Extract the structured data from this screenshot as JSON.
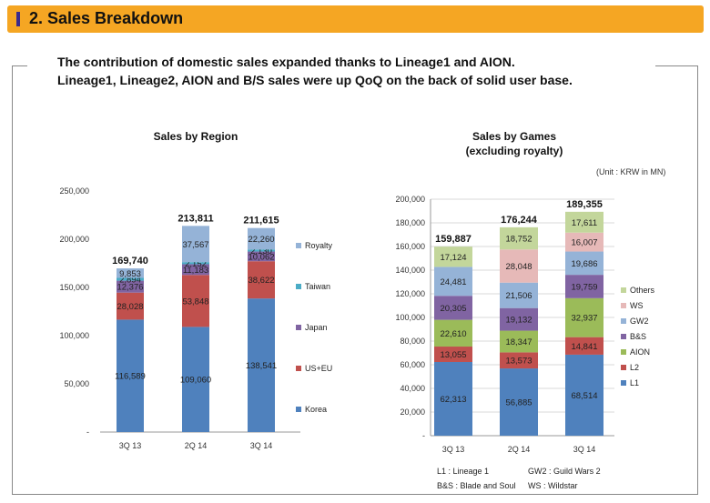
{
  "header": {
    "title": "2. Sales Breakdown"
  },
  "headline": {
    "line1": "The contribution of domestic sales expanded thanks to Lineage1 and AION.",
    "line2": "Lineage1, Lineage2, AION and B/S sales were up QoQ on the back of solid user base."
  },
  "colors": {
    "header": "#f5a623",
    "marker": "#3a2a8c"
  },
  "chart_data": [
    {
      "type": "bar",
      "stacked": true,
      "title": "Sales by Region",
      "categories": [
        "3Q 13",
        "2Q 14",
        "3Q 14"
      ],
      "ylim": [
        0,
        250000
      ],
      "yticks": [
        "-",
        "50,000",
        "100,000",
        "150,000",
        "200,000",
        "250,000"
      ],
      "totals": [
        "169,740",
        "213,811",
        "211,615"
      ],
      "series": [
        {
          "name": "Korea",
          "color": "#4f81bd",
          "values": [
            116589,
            109060,
            138541
          ],
          "labels": [
            "116,589",
            "109,060",
            "138,541"
          ]
        },
        {
          "name": "US+EU",
          "color": "#c0504d",
          "values": [
            28028,
            53848,
            38622
          ],
          "labels": [
            "28,028",
            "53,848",
            "38,622"
          ]
        },
        {
          "name": "Japan",
          "color": "#8064a2",
          "values": [
            12376,
            11183,
            10062
          ],
          "labels": [
            "12,376",
            "11,183",
            "10,062"
          ]
        },
        {
          "name": "Taiwan",
          "color": "#4bacc6",
          "values": [
            2894,
            2152,
            2130
          ],
          "labels": [
            "2,894",
            "2,152",
            "2,130"
          ]
        },
        {
          "name": "Royalty",
          "color": "#95b3d7",
          "values": [
            9853,
            37567,
            22260
          ],
          "labels": [
            "9,853",
            "37,567",
            "22,260"
          ]
        }
      ],
      "legend": [
        "Royalty",
        "Taiwan",
        "Japan",
        "US+EU",
        "Korea"
      ]
    },
    {
      "type": "bar",
      "stacked": true,
      "title": "Sales by Games",
      "subtitle": "(excluding royalty)",
      "unit": "(Unit : KRW in MN)",
      "categories": [
        "3Q 13",
        "2Q 14",
        "3Q 14"
      ],
      "ylim": [
        0,
        200000
      ],
      "yticks": [
        "-",
        "20,000",
        "40,000",
        "60,000",
        "80,000",
        "100,000",
        "120,000",
        "140,000",
        "160,000",
        "180,000",
        "200,000"
      ],
      "totals": [
        "159,887",
        "176,244",
        "189,355"
      ],
      "series": [
        {
          "name": "L1",
          "color": "#4f81bd",
          "values": [
            62313,
            56885,
            68514
          ],
          "labels": [
            "62,313",
            "56,885",
            "68,514"
          ]
        },
        {
          "name": "L2",
          "color": "#c0504d",
          "values": [
            13055,
            13573,
            14841
          ],
          "labels": [
            "13,055",
            "13,573",
            "14,841"
          ]
        },
        {
          "name": "AION",
          "color": "#9bbb59",
          "values": [
            22610,
            18347,
            32937
          ],
          "labels": [
            "22,610",
            "18,347",
            "32,937"
          ]
        },
        {
          "name": "B&S",
          "color": "#8064a2",
          "values": [
            20305,
            19132,
            19759
          ],
          "labels": [
            "20,305",
            "19,132",
            "19,759"
          ]
        },
        {
          "name": "GW2",
          "color": "#95b3d7",
          "values": [
            24481,
            21506,
            19686
          ],
          "labels": [
            "24,481",
            "21,506",
            "19,686"
          ]
        },
        {
          "name": "WS",
          "color": "#e6b9b8",
          "values": [
            0,
            28048,
            16007
          ],
          "labels": [
            "",
            "28,048",
            "16,007"
          ]
        },
        {
          "name": "Others",
          "color": "#c3d69b",
          "values": [
            17124,
            18752,
            17611
          ],
          "labels": [
            "17,124",
            "18,752",
            "17,611"
          ]
        }
      ],
      "legend": [
        "Others",
        "WS",
        "GW2",
        "B&S",
        "AION",
        "L2",
        "L1"
      ],
      "footnotes": [
        "L1 : Lineage 1",
        "GW2 : Guild Wars 2",
        "B&S : Blade and Soul",
        "WS : Wildstar"
      ]
    }
  ]
}
